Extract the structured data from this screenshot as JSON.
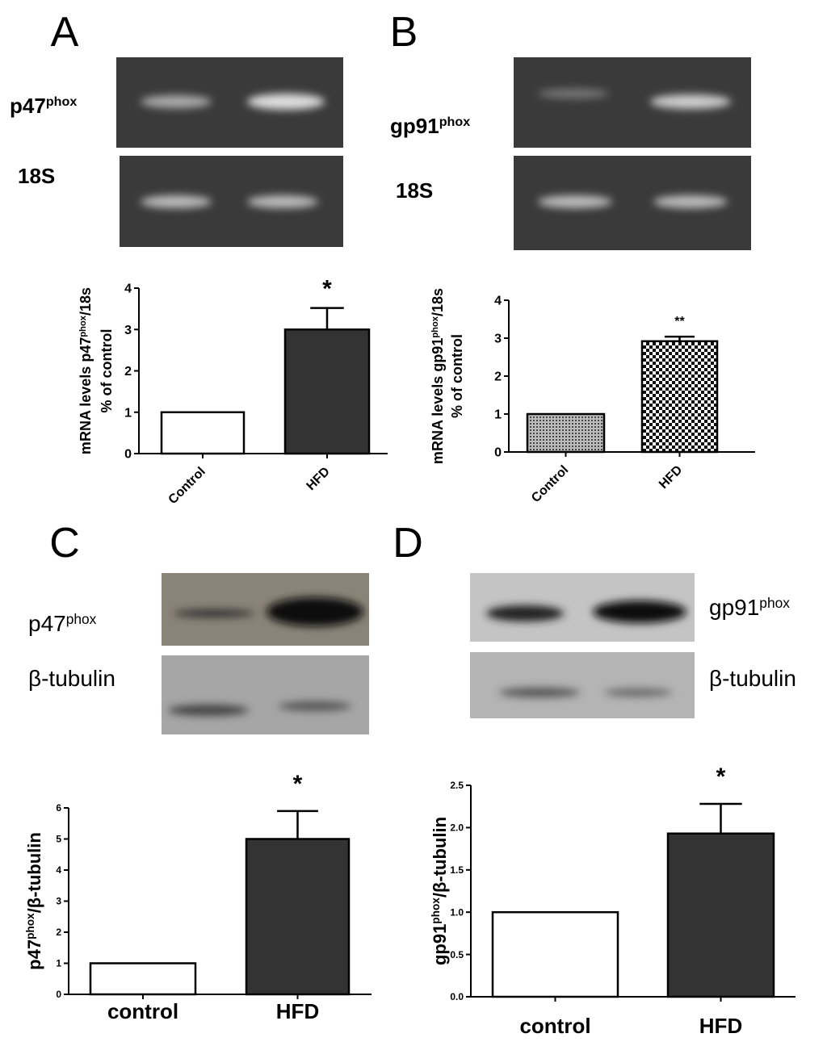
{
  "chart_data": [
    {
      "type": "bar",
      "panel": "A",
      "blot_labels": [
        [
          {
            "text": "p47"
          },
          {
            "text": "phox",
            "sup": true
          }
        ],
        [
          {
            "text": "18S"
          }
        ]
      ],
      "ylabel": [
        [
          {
            "text": "mRNA levels p47"
          },
          {
            "text": "phox",
            "sup": true
          },
          {
            "text": "/18s"
          }
        ],
        [
          {
            "text": "% of control"
          }
        ]
      ],
      "categories": [
        "Control",
        "HFD"
      ],
      "values": [
        1,
        3.0
      ],
      "errors": [
        null,
        0.52
      ],
      "colors": [
        "#ffffff",
        "#333333"
      ],
      "annotation": "*",
      "ylim": [
        0,
        4
      ],
      "yticks": [
        0,
        1,
        2,
        3,
        4
      ]
    },
    {
      "type": "bar",
      "panel": "B",
      "blot_labels": [
        [
          {
            "text": "gp91"
          },
          {
            "text": "phox",
            "sup": true
          }
        ],
        [
          {
            "text": "18S"
          }
        ]
      ],
      "ylabel": [
        [
          {
            "text": "mRNA levels gp91"
          },
          {
            "text": "phox",
            "sup": true
          },
          {
            "text": "/18s"
          }
        ],
        [
          {
            "text": "% of control"
          }
        ]
      ],
      "categories": [
        "Control",
        "HFD"
      ],
      "values": [
        1,
        2.92
      ],
      "errors": [
        null,
        0.12
      ],
      "fills": [
        "dots",
        "checker"
      ],
      "annotation": "**",
      "ylim": [
        0,
        4
      ],
      "yticks": [
        0,
        1,
        2,
        3,
        4
      ]
    },
    {
      "type": "bar",
      "panel": "C",
      "blot_labels": [
        [
          {
            "text": "p47"
          },
          {
            "text": "phox",
            "sup": true
          }
        ],
        [
          {
            "text": "β-tubulin"
          }
        ]
      ],
      "ylabel": [
        [
          {
            "text": "p47"
          },
          {
            "text": "phox",
            "sup": true
          },
          {
            "text": "/β-tubulin"
          }
        ]
      ],
      "categories": [
        "control",
        "HFD"
      ],
      "values": [
        1,
        5.0
      ],
      "errors": [
        null,
        0.9
      ],
      "colors": [
        "#ffffff",
        "#333333"
      ],
      "annotation": "*",
      "ylim": [
        0,
        6
      ],
      "yticks": [
        0,
        1,
        2,
        3,
        4,
        5,
        6
      ]
    },
    {
      "type": "bar",
      "panel": "D",
      "blot_labels": [
        [
          {
            "text": "gp91"
          },
          {
            "text": "phox",
            "sup": true
          }
        ],
        [
          {
            "text": "β-tubulin"
          }
        ]
      ],
      "ylabel": [
        [
          {
            "text": "gp91"
          },
          {
            "text": "phox",
            "sup": true
          },
          {
            "text": "/β-tubulin"
          }
        ]
      ],
      "categories": [
        "control",
        "HFD"
      ],
      "values": [
        1.0,
        1.93
      ],
      "errors": [
        null,
        0.35
      ],
      "colors": [
        "#ffffff",
        "#333333"
      ],
      "annotation": "*",
      "ylim": [
        0,
        2.5
      ],
      "yticks": [
        {
          "value": 0,
          "label": "0.0"
        },
        0.5,
        {
          "value": 1,
          "label": "1.0"
        },
        1.5,
        {
          "value": 2,
          "label": "2.0"
        },
        2.5
      ]
    }
  ]
}
